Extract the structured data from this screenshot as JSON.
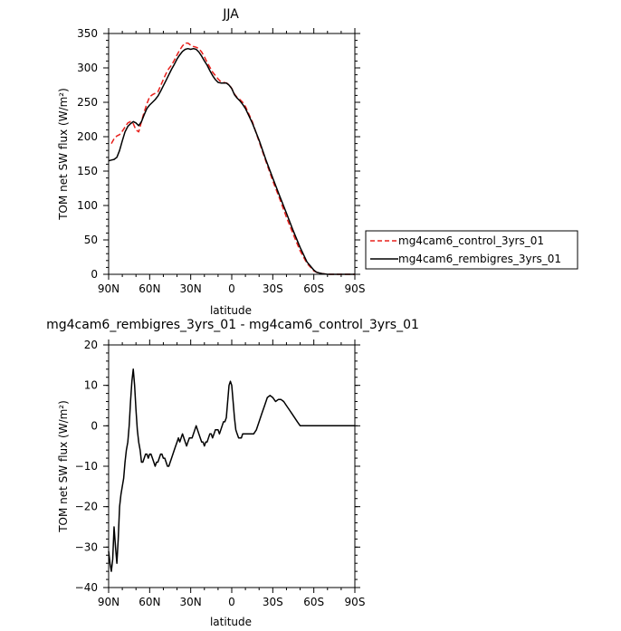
{
  "chart_data": [
    {
      "type": "line",
      "title": "JJA",
      "xlabel": "latitude",
      "ylabel": "TOM net SW flux (W/m²)",
      "xlim": [
        90,
        -90
      ],
      "ylim": [
        0,
        350
      ],
      "xticks": [
        90,
        60,
        30,
        0,
        -30,
        -60,
        -90
      ],
      "xtick_labels": [
        "90N",
        "60N",
        "30N",
        "0",
        "30S",
        "60S",
        "90S"
      ],
      "yticks": [
        0,
        50,
        100,
        150,
        200,
        250,
        300,
        350
      ],
      "ytick_labels": [
        "0",
        "50",
        "100",
        "150",
        "200",
        "250",
        "300",
        "350"
      ],
      "grid": false,
      "legend_position": "right",
      "series": [
        {
          "name": "mg4cam6_control_3yrs_01",
          "color": "#e8201c",
          "dash": "dashed",
          "x": [
            88,
            86,
            84,
            82,
            80,
            78,
            76,
            74,
            72,
            70,
            68,
            66,
            64,
            62,
            60,
            58,
            56,
            54,
            52,
            50,
            48,
            46,
            44,
            42,
            40,
            38,
            36,
            34,
            32,
            30,
            28,
            26,
            24,
            22,
            20,
            18,
            16,
            14,
            12,
            10,
            8,
            6,
            4,
            2,
            0,
            -2,
            -4,
            -6,
            -8,
            -10,
            -15,
            -20,
            -25,
            -30,
            -35,
            -40,
            -45,
            -50,
            -55,
            -60,
            -62,
            -64,
            -66,
            -68,
            -70,
            -75,
            -80,
            -85,
            -90
          ],
          "y": [
            190,
            197,
            201,
            203,
            208,
            214,
            220,
            222,
            219,
            210,
            207,
            222,
            236,
            248,
            258,
            261,
            263,
            265,
            274,
            283,
            292,
            299,
            304,
            311,
            319,
            326,
            332,
            336,
            336,
            333,
            331,
            330,
            328,
            323,
            316,
            308,
            301,
            294,
            289,
            284,
            280,
            279,
            278,
            276,
            270,
            262,
            257,
            254,
            250,
            244,
            222,
            193,
            164,
            136,
            110,
            83,
            58,
            34,
            16,
            5,
            3,
            2,
            1,
            0.5,
            0,
            0,
            0,
            0,
            0
          ]
        },
        {
          "name": "mg4cam6_rembigres_3yrs_01",
          "color": "#000000",
          "dash": "solid",
          "x": [
            90,
            88,
            86,
            84,
            82,
            80,
            78,
            76,
            74,
            72,
            70,
            68,
            66,
            64,
            62,
            60,
            58,
            56,
            54,
            52,
            50,
            48,
            46,
            44,
            42,
            40,
            38,
            36,
            34,
            32,
            30,
            28,
            26,
            24,
            22,
            20,
            18,
            16,
            14,
            12,
            10,
            8,
            6,
            4,
            2,
            0,
            -2,
            -4,
            -6,
            -8,
            -10,
            -15,
            -20,
            -25,
            -30,
            -35,
            -40,
            -45,
            -50,
            -55,
            -60,
            -62,
            -64,
            -66,
            -68,
            -70,
            -75,
            -80,
            -85,
            -90
          ],
          "y": [
            165,
            166,
            167,
            170,
            180,
            194,
            207,
            215,
            219,
            222,
            220,
            216,
            222,
            232,
            241,
            246,
            250,
            254,
            259,
            266,
            274,
            282,
            290,
            298,
            305,
            313,
            319,
            324,
            327,
            328,
            327,
            328,
            327,
            323,
            317,
            310,
            304,
            296,
            289,
            283,
            279,
            278,
            278,
            278,
            275,
            270,
            261,
            256,
            252,
            247,
            241,
            220,
            195,
            166,
            140,
            114,
            89,
            63,
            39,
            18,
            6,
            3,
            2,
            1,
            0.5,
            0,
            0,
            0,
            0,
            0
          ]
        }
      ]
    },
    {
      "type": "line",
      "title": "mg4cam6_rembigres_3yrs_01 - mg4cam6_control_3yrs_01",
      "xlabel": "latitude",
      "ylabel": "TOM net SW flux (W/m²)",
      "xlim": [
        90,
        -90
      ],
      "ylim": [
        -40,
        20
      ],
      "xticks": [
        90,
        60,
        30,
        0,
        -30,
        -60,
        -90
      ],
      "xtick_labels": [
        "90N",
        "60N",
        "30N",
        "0",
        "30S",
        "60S",
        "90S"
      ],
      "yticks": [
        -40,
        -30,
        -20,
        -10,
        0,
        10,
        20
      ],
      "ytick_labels": [
        "−40",
        "−30",
        "−20",
        "−10",
        "0",
        "10",
        "20"
      ],
      "grid": false,
      "series": [
        {
          "color": "#000000",
          "x": [
            90,
            89,
            88,
            87,
            86,
            85,
            84,
            83,
            82,
            81,
            80,
            79,
            78,
            77,
            76,
            75,
            74,
            73,
            72,
            71,
            70,
            69,
            68,
            67,
            66,
            65,
            64,
            63,
            62,
            61,
            60,
            59,
            58,
            57,
            56,
            55,
            54,
            53,
            52,
            51,
            50,
            49,
            48,
            47,
            46,
            45,
            44,
            43,
            42,
            41,
            40,
            39,
            38,
            37,
            36,
            35,
            34,
            33,
            32,
            31,
            30,
            29,
            28,
            27,
            26,
            25,
            24,
            23,
            22,
            21,
            20,
            19,
            18,
            17,
            16,
            15,
            14,
            13,
            12,
            11,
            10,
            9,
            8,
            7,
            6,
            5,
            4,
            3,
            2,
            1,
            0,
            -1,
            -2,
            -3,
            -4,
            -5,
            -6,
            -7,
            -8,
            -9,
            -10,
            -12,
            -14,
            -16,
            -18,
            -20,
            -22,
            -24,
            -26,
            -28,
            -30,
            -32,
            -34,
            -36,
            -38,
            -40,
            -42,
            -44,
            -46,
            -48,
            -50,
            -52,
            -54,
            -56,
            -58,
            -60,
            -62,
            -64,
            -66,
            -70,
            -75,
            -80,
            -85,
            -90
          ],
          "y": [
            -31,
            -34,
            -36,
            -33,
            -25,
            -30,
            -34,
            -28,
            -20,
            -17,
            -15,
            -13,
            -9,
            -6,
            -4,
            0,
            6,
            11,
            14,
            10,
            4,
            -1,
            -4,
            -6,
            -9,
            -9,
            -8,
            -7,
            -7,
            -8,
            -7,
            -7,
            -8,
            -9,
            -10,
            -9,
            -9,
            -8,
            -7,
            -7,
            -8,
            -8,
            -9,
            -10,
            -10,
            -9,
            -8,
            -7,
            -6,
            -5,
            -4,
            -3,
            -4,
            -3,
            -2,
            -3,
            -4,
            -5,
            -4,
            -3,
            -3,
            -3,
            -2,
            -1,
            0,
            -1,
            -2,
            -3,
            -4,
            -4,
            -5,
            -4,
            -4,
            -3,
            -2,
            -2,
            -3,
            -2,
            -1,
            -1,
            -1,
            -2,
            -1,
            0,
            1,
            1,
            2,
            6,
            10,
            11,
            10,
            6,
            2,
            -1,
            -2,
            -3,
            -3,
            -3,
            -2,
            -2,
            -2,
            -2,
            -2,
            -2,
            -1,
            1,
            3,
            5,
            7,
            7.5,
            7,
            6,
            6.5,
            6.5,
            6,
            5,
            4,
            3,
            2,
            1,
            0,
            0,
            0,
            0,
            0,
            0,
            0,
            0,
            0,
            0,
            0,
            0,
            0,
            0
          ]
        }
      ]
    }
  ]
}
